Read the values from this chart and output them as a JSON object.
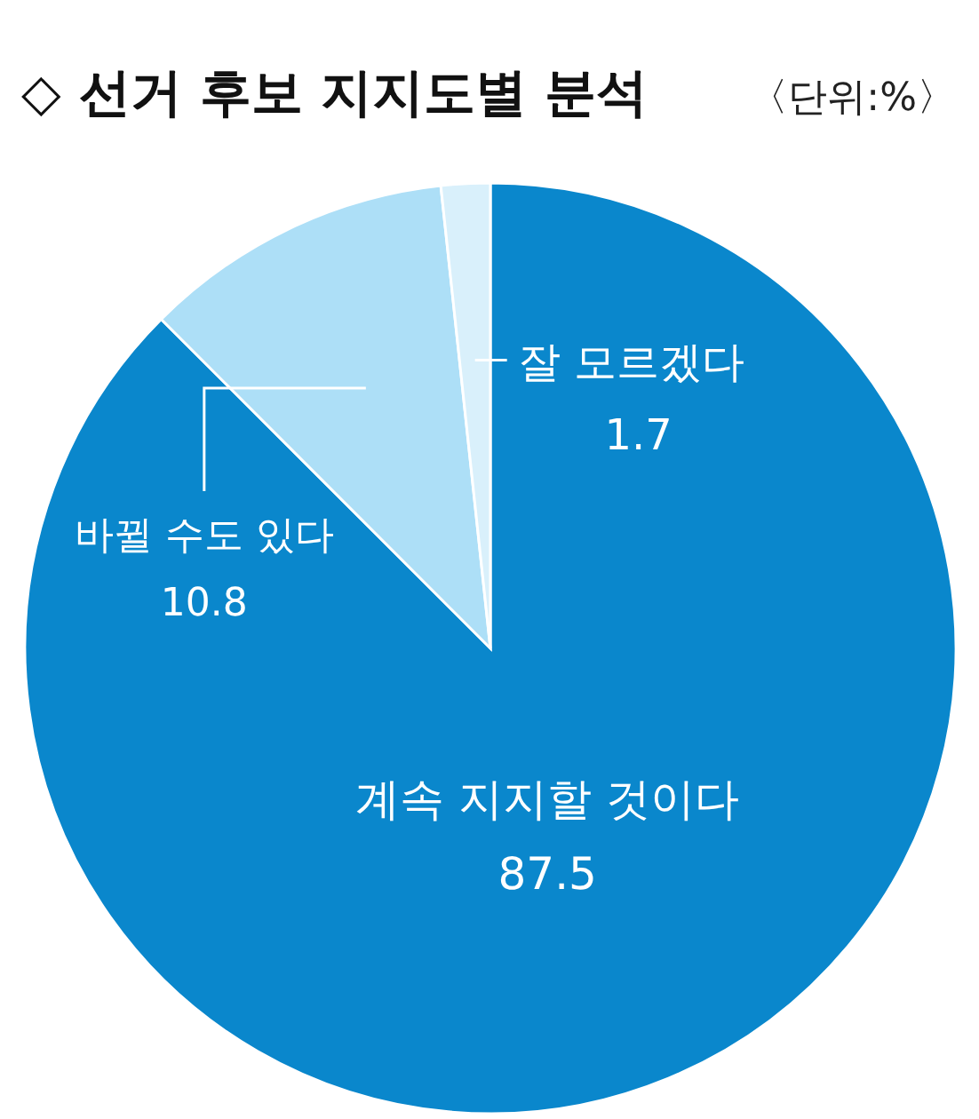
{
  "chart_data": {
    "type": "pie",
    "title": "◇ 선거 후보 지지도별 분석",
    "annotations": [
      "〈단위:%〉"
    ],
    "categories": [
      "계속 지지할 것이다",
      "바뀔 수도 있다",
      "잘 모르겠다"
    ],
    "values": [
      87.5,
      10.8,
      1.7
    ],
    "colors": [
      "#0a87cc",
      "#addff7",
      "#d9f0fb"
    ],
    "data_labels": true
  }
}
